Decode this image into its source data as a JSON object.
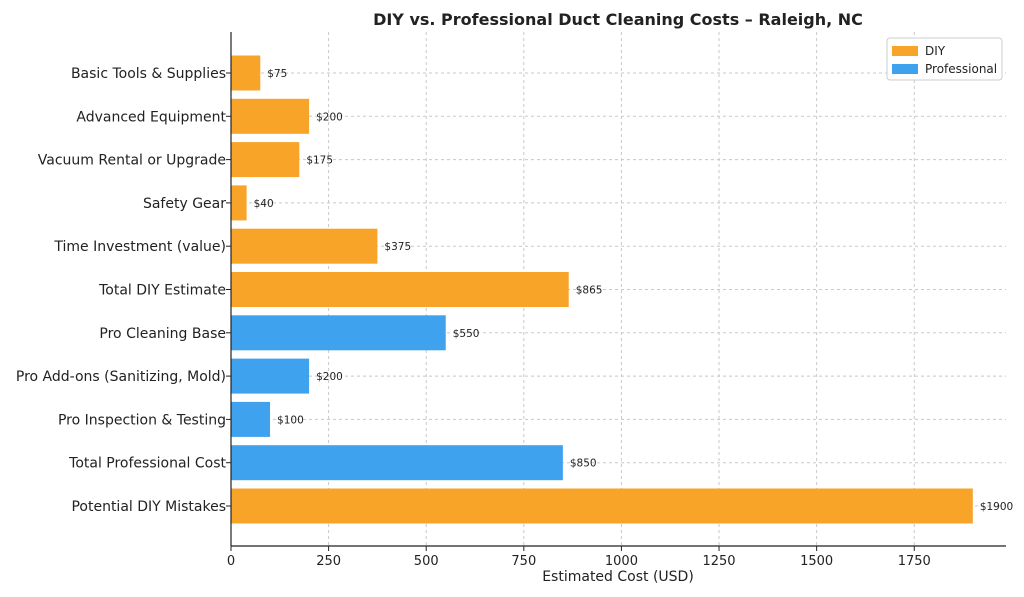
{
  "chart_data": {
    "type": "bar",
    "orientation": "horizontal",
    "title": "DIY vs. Professional Duct Cleaning Costs – Raleigh, NC",
    "xlabel": "Estimated Cost (USD)",
    "ylabel": "",
    "xlim": [
      0,
      1985
    ],
    "xticks": [
      0,
      250,
      500,
      750,
      1000,
      1250,
      1500,
      1750
    ],
    "grid": true,
    "legend_position": "top-right",
    "legend": [
      {
        "name": "DIY",
        "color": "#F7A428"
      },
      {
        "name": "Professional",
        "color": "#3FA2EE"
      }
    ],
    "categories": [
      "Basic Tools & Supplies",
      "Advanced Equipment",
      "Vacuum Rental or Upgrade",
      "Safety Gear",
      "Time Investment (value)",
      "Total DIY Estimate",
      "Pro Cleaning Base",
      "Pro Add-ons (Sanitizing, Mold)",
      "Pro Inspection & Testing",
      "Total Professional Cost",
      "Potential DIY Mistakes"
    ],
    "values": [
      75,
      200,
      175,
      40,
      375,
      865,
      550,
      200,
      100,
      850,
      1900
    ],
    "data_labels": [
      "$75",
      "$200",
      "$175",
      "$40",
      "$375",
      "$865",
      "$550",
      "$200",
      "$100",
      "$850",
      "$1900"
    ],
    "groups": [
      "DIY",
      "DIY",
      "DIY",
      "DIY",
      "DIY",
      "DIY",
      "Professional",
      "Professional",
      "Professional",
      "Professional",
      "DIY"
    ]
  }
}
